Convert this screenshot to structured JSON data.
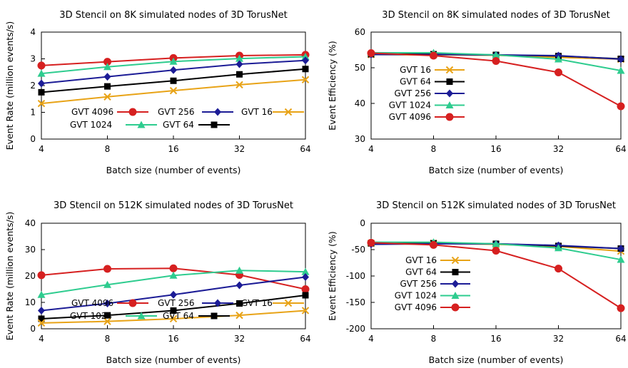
{
  "chart_data": [
    {
      "type": "line",
      "title": "3D Stencil on 8K simulated nodes of 3D TorusNet",
      "xlabel": "Batch size (number of events)",
      "ylabel": "Event Rate (million events/s)",
      "categories": [
        "4",
        "8",
        "16",
        "32",
        "64"
      ],
      "ylim": [
        0,
        4
      ],
      "yticks": [
        "0",
        "1",
        "2",
        "3",
        "4"
      ],
      "grid": false,
      "legend": [
        "GVT 4096",
        "GVT 256",
        "GVT 16",
        "GVT 1024",
        "GVT 64"
      ],
      "series": [
        {
          "name": "GVT 4096",
          "values": [
            2.75,
            2.89,
            3.03,
            3.12,
            3.15
          ]
        },
        {
          "name": "GVT 1024",
          "values": [
            2.45,
            2.7,
            2.9,
            3.01,
            3.08
          ]
        },
        {
          "name": "GVT 256",
          "values": [
            2.08,
            2.33,
            2.58,
            2.8,
            2.94
          ]
        },
        {
          "name": "GVT 64",
          "values": [
            1.75,
            1.97,
            2.18,
            2.42,
            2.62
          ]
        },
        {
          "name": "GVT 16",
          "values": [
            1.33,
            1.58,
            1.81,
            2.03,
            2.22
          ]
        }
      ]
    },
    {
      "type": "line",
      "title": "3D Stencil on 8K simulated nodes of 3D TorusNet",
      "xlabel": "Batch size (number of events)",
      "ylabel": "Event Efficiency (%)",
      "categories": [
        "4",
        "8",
        "16",
        "32",
        "64"
      ],
      "ylim": [
        30,
        60
      ],
      "yticks": [
        "30",
        "40",
        "50",
        "60"
      ],
      "grid": false,
      "legend": [
        "GVT 16",
        "GVT 64",
        "GVT 256",
        "GVT 1024",
        "GVT 4096"
      ],
      "series": [
        {
          "name": "GVT 16",
          "values": [
            53.7,
            53.6,
            53.5,
            52.9,
            52.4
          ]
        },
        {
          "name": "GVT 64",
          "values": [
            53.8,
            53.8,
            53.6,
            53.3,
            52.5
          ]
        },
        {
          "name": "GVT 256",
          "values": [
            53.7,
            53.7,
            53.6,
            53.4,
            52.4
          ]
        },
        {
          "name": "GVT 1024",
          "values": [
            54.2,
            54.2,
            53.6,
            52.4,
            49.2
          ]
        },
        {
          "name": "GVT 4096",
          "values": [
            54.1,
            53.4,
            51.9,
            48.7,
            39.2
          ]
        }
      ]
    },
    {
      "type": "line",
      "title": "3D Stencil on 512K simulated nodes of 3D TorusNet",
      "xlabel": "Batch size (number of events)",
      "ylabel": "Event Rate (million events/s)",
      "categories": [
        "4",
        "8",
        "16",
        "32",
        "64"
      ],
      "ylim": [
        0,
        40
      ],
      "yticks": [
        "0",
        "10",
        "20",
        "30",
        "40"
      ],
      "grid": false,
      "legend": [
        "GVT 4096",
        "GVT 256",
        "GVT 16",
        "GVT 1024",
        "GVT 64"
      ],
      "series": [
        {
          "name": "GVT 4096",
          "values": [
            20.3,
            22.7,
            22.9,
            20.4,
            15.0
          ]
        },
        {
          "name": "GVT 1024",
          "values": [
            12.9,
            16.7,
            20.2,
            22.1,
            21.6
          ]
        },
        {
          "name": "GVT 256",
          "values": [
            6.9,
            9.6,
            12.9,
            16.5,
            19.6
          ]
        },
        {
          "name": "GVT 64",
          "values": [
            3.8,
            5.1,
            6.9,
            9.6,
            12.7
          ]
        },
        {
          "name": "GVT 16",
          "values": [
            2.2,
            2.8,
            3.8,
            5.1,
            6.9
          ]
        }
      ]
    },
    {
      "type": "line",
      "title": "3D Stencil on 512K simulated nodes of 3D TorusNet",
      "xlabel": "Batch size (number of events)",
      "ylabel": "Event Efficiency (%)",
      "categories": [
        "4",
        "8",
        "16",
        "32",
        "64"
      ],
      "ylim": [
        -200,
        0
      ],
      "yticks": [
        "-200",
        "-150",
        "-100",
        "-50",
        "0"
      ],
      "grid": false,
      "legend": [
        "GVT 16",
        "GVT 64",
        "GVT 256",
        "GVT 1024",
        "GVT 4096"
      ],
      "series": [
        {
          "name": "GVT 16",
          "values": [
            -38,
            -38,
            -40,
            -44,
            -53
          ]
        },
        {
          "name": "GVT 64",
          "values": [
            -38,
            -38,
            -39,
            -43,
            -48
          ]
        },
        {
          "name": "GVT 256",
          "values": [
            -40,
            -39,
            -39,
            -42,
            -48
          ]
        },
        {
          "name": "GVT 1024",
          "values": [
            -36,
            -36,
            -39,
            -47,
            -69
          ]
        },
        {
          "name": "GVT 4096",
          "values": [
            -37,
            -41,
            -52,
            -86,
            -161
          ]
        }
      ]
    }
  ],
  "colors": {
    "GVT 16": "#e8a317",
    "GVT 64": "#000000",
    "GVT 256": "#1c1c96",
    "GVT 1024": "#2ecc8f",
    "GVT 4096": "#d62020"
  },
  "markers": {
    "GVT 16": "x",
    "GVT 64": "square",
    "GVT 256": "diamond",
    "GVT 1024": "triangle",
    "GVT 4096": "circle"
  }
}
